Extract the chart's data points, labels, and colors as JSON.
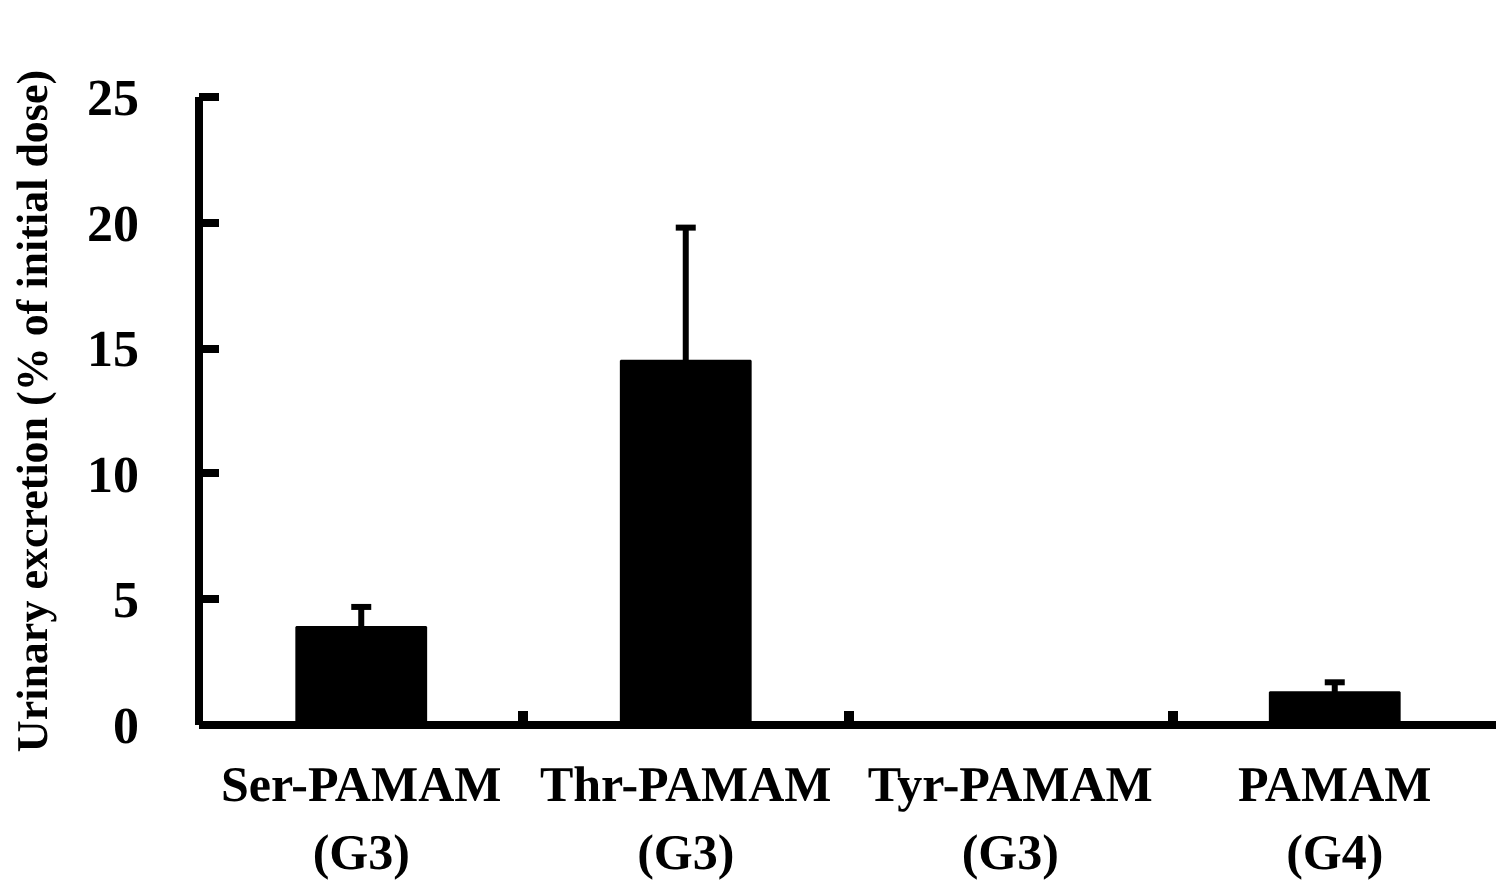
{
  "chart_data": {
    "type": "bar",
    "ylabel": "Urinary excretion (% of initial dose)",
    "categories": [
      "Ser-PAMAM\n(G3)",
      "Thr-PAMAM\n(G3)",
      "Tyr-PAMAM\n(G3)",
      "PAMAM\n(G4)"
    ],
    "values": [
      3.9,
      14.5,
      0,
      1.3
    ],
    "errors": [
      [
        3.9,
        4.7
      ],
      [
        14.5,
        19.8
      ],
      null,
      [
        1.3,
        1.7
      ]
    ],
    "color": "#000000",
    "ylim": [
      0,
      25
    ],
    "yticks": [
      0,
      5,
      10,
      15,
      20,
      25
    ]
  }
}
